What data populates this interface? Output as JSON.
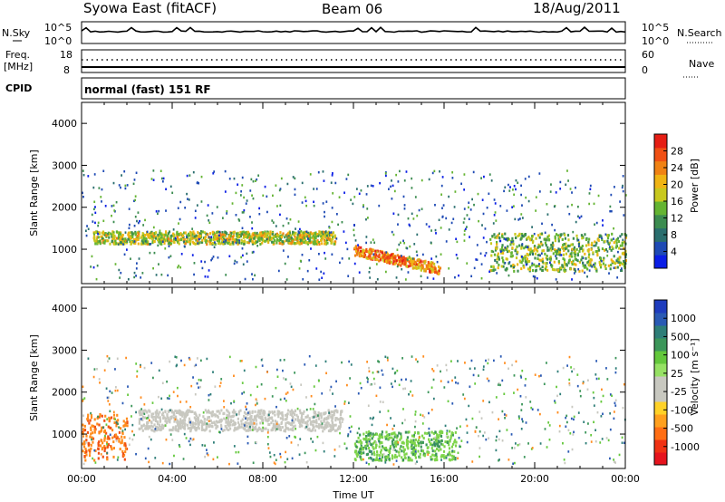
{
  "header": {
    "station": "Syowa East (fitACF)",
    "beam": "Beam 06",
    "date": "18/Aug/2011"
  },
  "strips": {
    "nsky_label": "N.Sky",
    "nsearch_label": "N.Search",
    "noise_ticks": [
      "10^5",
      "10^0"
    ],
    "freq_label_1": "Freq.",
    "freq_label_2": "[MHz]",
    "freq_ticks": [
      "18",
      "8"
    ],
    "nave_label": "Nave",
    "nave_ticks": [
      "60",
      "0"
    ],
    "cpid_label": "CPID",
    "cpid_text": "normal (fast) 151 RF"
  },
  "power_scale": {
    "label": "Power [dB]",
    "ticks": [
      "4",
      "8",
      "12",
      "16",
      "20",
      "24",
      "28"
    ],
    "colors": [
      "#0a1ee6",
      "#1e4ab4",
      "#2a6e6e",
      "#3c8c50",
      "#64b432",
      "#c8c81e",
      "#f0b414",
      "#f08214",
      "#f05014",
      "#e61e14"
    ]
  },
  "velocity_scale": {
    "label": "Velocity [m s⁻¹]",
    "ticks": [
      "1000",
      "500",
      "100",
      "25",
      "-25",
      "-100",
      "-500",
      "-1000"
    ],
    "colors": [
      "#1e3cbe",
      "#2a5ab4",
      "#2e7e78",
      "#3c965a",
      "#64c83c",
      "#96e164",
      "#c8c8c0",
      "#c8c8c0",
      "#ffd228",
      "#ffa01e",
      "#ff6e14",
      "#f03214",
      "#e6141e"
    ]
  },
  "chart_data": [
    {
      "type": "heatmap",
      "quantity": "Power [dB]",
      "xlabel": "",
      "ylabel": "Slant Range [km]",
      "x_ticks": [
        "00:00",
        "04:00",
        "08:00",
        "12:00",
        "16:00",
        "20:00",
        "00:00"
      ],
      "xlim_hours": [
        0,
        24
      ],
      "y_ticks": [
        1000,
        2000,
        3000,
        4000
      ],
      "ylim": [
        180,
        4500
      ],
      "cbar_ticks": [
        4,
        8,
        12,
        16,
        20,
        24,
        28
      ],
      "features": [
        {
          "band": "main echo band",
          "t_start": 0.5,
          "t_end": 11.2,
          "range_km": [
            1150,
            1450
          ],
          "peak_db": 24
        },
        {
          "band": "strong descending echo",
          "t_start": 12.0,
          "t_end": 15.8,
          "range_km": [
            400,
            1000
          ],
          "peak_db": 30
        },
        {
          "band": "dawn sector echoes",
          "t_start": 18.0,
          "t_end": 24.0,
          "range_km": [
            500,
            1400
          ],
          "peak_db": 22
        }
      ]
    },
    {
      "type": "heatmap",
      "quantity": "Velocity [m s-1]",
      "xlabel": "Time UT",
      "ylabel": "Slant Range [km]",
      "x_ticks": [
        "00:00",
        "04:00",
        "08:00",
        "12:00",
        "16:00",
        "20:00",
        "00:00"
      ],
      "xlim_hours": [
        0,
        24
      ],
      "y_ticks": [
        1000,
        2000,
        3000,
        4000
      ],
      "ylim": [
        180,
        4500
      ],
      "cbar_ticks": [
        1000,
        500,
        100,
        25,
        -25,
        -100,
        -500,
        -1000
      ],
      "features": [
        {
          "band": "ground scatter (gray)",
          "t_start": 2.5,
          "t_end": 11.5,
          "range_km": [
            1100,
            1600
          ],
          "velocity": 0
        },
        {
          "band": "positive flow (green)",
          "t_start": 12.0,
          "t_end": 16.5,
          "range_km": [
            400,
            1100
          ],
          "velocity": 150
        },
        {
          "band": "negative flow (orange)",
          "t_start": 0.0,
          "t_end": 2.0,
          "range_km": [
            400,
            1500
          ],
          "velocity": -300
        }
      ]
    }
  ]
}
